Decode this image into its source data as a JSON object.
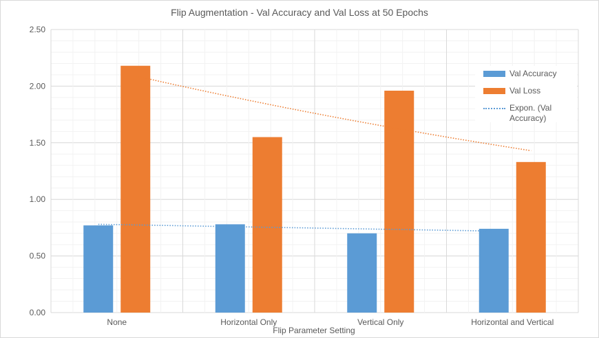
{
  "chart_data": {
    "type": "bar",
    "title": "Flip Augmentation  - Val Accuracy and Val Loss at 50 Epochs",
    "xlabel": "Flip Parameter Setting",
    "ylabel": "",
    "categories": [
      "None",
      "Horizontal Only",
      "Vertical Only",
      "Horizontal and Vertical"
    ],
    "series": [
      {
        "name": "Val Accuracy",
        "color": "#5b9bd5",
        "values": [
          0.77,
          0.78,
          0.7,
          0.74
        ]
      },
      {
        "name": "Val Loss",
        "color": "#ed7d31",
        "values": [
          2.18,
          1.55,
          1.96,
          1.33
        ]
      }
    ],
    "trendlines": [
      {
        "name": "Expon. (Val Accuracy)",
        "series": "Val Accuracy",
        "type": "exponential",
        "color": "#5b9bd5",
        "show_in_legend": true,
        "start": 0.78,
        "end": 0.72
      },
      {
        "series": "Val Loss",
        "type": "exponential",
        "color": "#ed7d31",
        "show_in_legend": false,
        "start": 2.09,
        "end": 1.43
      }
    ],
    "ylim": [
      0,
      2.5
    ],
    "yticks": [
      "0.00",
      "0.50",
      "1.00",
      "1.50",
      "2.00",
      "2.50"
    ],
    "grid": true,
    "legend_position": "right"
  }
}
